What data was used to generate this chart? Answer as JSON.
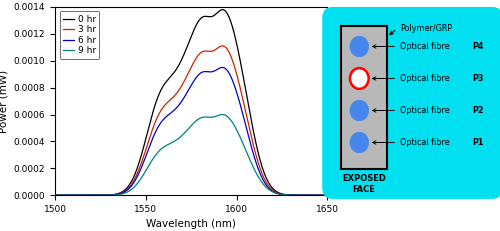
{
  "xlabel": "Wavelength (nm)",
  "ylabel": "Power (mW)",
  "xlim": [
    1500,
    1650
  ],
  "ylim": [
    0,
    0.0014
  ],
  "legend_labels": [
    "0 hr",
    "3 hr",
    "6 hr",
    "9 hr"
  ],
  "legend_colors": [
    "#000000",
    "#cc2200",
    "#0000cc",
    "#008080"
  ],
  "diagram_bg_color": "#00e0f0",
  "panel_color": "#b8b8b8",
  "exposed_face_label": "EXPOSED\nFACE",
  "diagram_labels": [
    "Polymer/GRP",
    "Optical fibre ",
    "P4",
    "Optical fibre ",
    "P3",
    "Optical fibre ",
    "P2",
    "Optical fibre ",
    "P1"
  ],
  "peak_scales": [
    0.00138,
    0.00111,
    0.00095,
    0.0006
  ],
  "rise_centers": [
    1520,
    1522,
    1525,
    1528
  ],
  "fall_centers": [
    1618,
    1617,
    1616,
    1619
  ],
  "fall_steeps": [
    6,
    6,
    6,
    7
  ]
}
